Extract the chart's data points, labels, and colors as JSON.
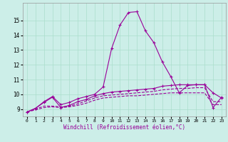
{
  "background_color": "#cceee8",
  "grid_color": "#aaddcc",
  "line_color": "#990099",
  "x_values": [
    0,
    1,
    2,
    3,
    4,
    5,
    6,
    7,
    8,
    9,
    10,
    11,
    12,
    13,
    14,
    15,
    16,
    17,
    18,
    19,
    20,
    21,
    22,
    23
  ],
  "series_peak": [
    8.8,
    9.05,
    9.5,
    9.85,
    9.3,
    9.45,
    9.7,
    9.85,
    10.0,
    10.5,
    13.1,
    14.7,
    15.55,
    15.6,
    14.3,
    13.5,
    12.2,
    11.2,
    10.1,
    10.6,
    10.65,
    10.65,
    9.1,
    9.8
  ],
  "series_upper": [
    8.8,
    9.05,
    9.45,
    9.8,
    9.1,
    9.25,
    9.5,
    9.65,
    9.9,
    10.05,
    10.15,
    10.2,
    10.25,
    10.3,
    10.35,
    10.4,
    10.55,
    10.6,
    10.65,
    10.65,
    10.65,
    10.65,
    10.1,
    9.75
  ],
  "series_mid": [
    8.8,
    9.0,
    9.2,
    9.2,
    9.15,
    9.2,
    9.35,
    9.55,
    9.75,
    9.9,
    9.95,
    10.0,
    10.05,
    10.1,
    10.15,
    10.2,
    10.3,
    10.35,
    10.4,
    10.4,
    10.45,
    10.45,
    9.5,
    9.5
  ],
  "series_lower": [
    8.8,
    8.95,
    9.1,
    9.15,
    9.1,
    9.15,
    9.25,
    9.4,
    9.6,
    9.75,
    9.8,
    9.85,
    9.9,
    9.9,
    9.95,
    10.0,
    10.05,
    10.1,
    10.1,
    10.1,
    10.1,
    10.1,
    9.3,
    9.3
  ],
  "ylim": [
    8.5,
    16.2
  ],
  "xlim": [
    -0.5,
    23.5
  ],
  "yticks": [
    9,
    10,
    11,
    12,
    13,
    14,
    15
  ],
  "xticks": [
    0,
    1,
    2,
    3,
    4,
    5,
    6,
    7,
    8,
    9,
    10,
    11,
    12,
    13,
    14,
    15,
    16,
    17,
    18,
    19,
    20,
    21,
    22,
    23
  ],
  "xlabel": "Windchill (Refroidissement éolien,°C)"
}
